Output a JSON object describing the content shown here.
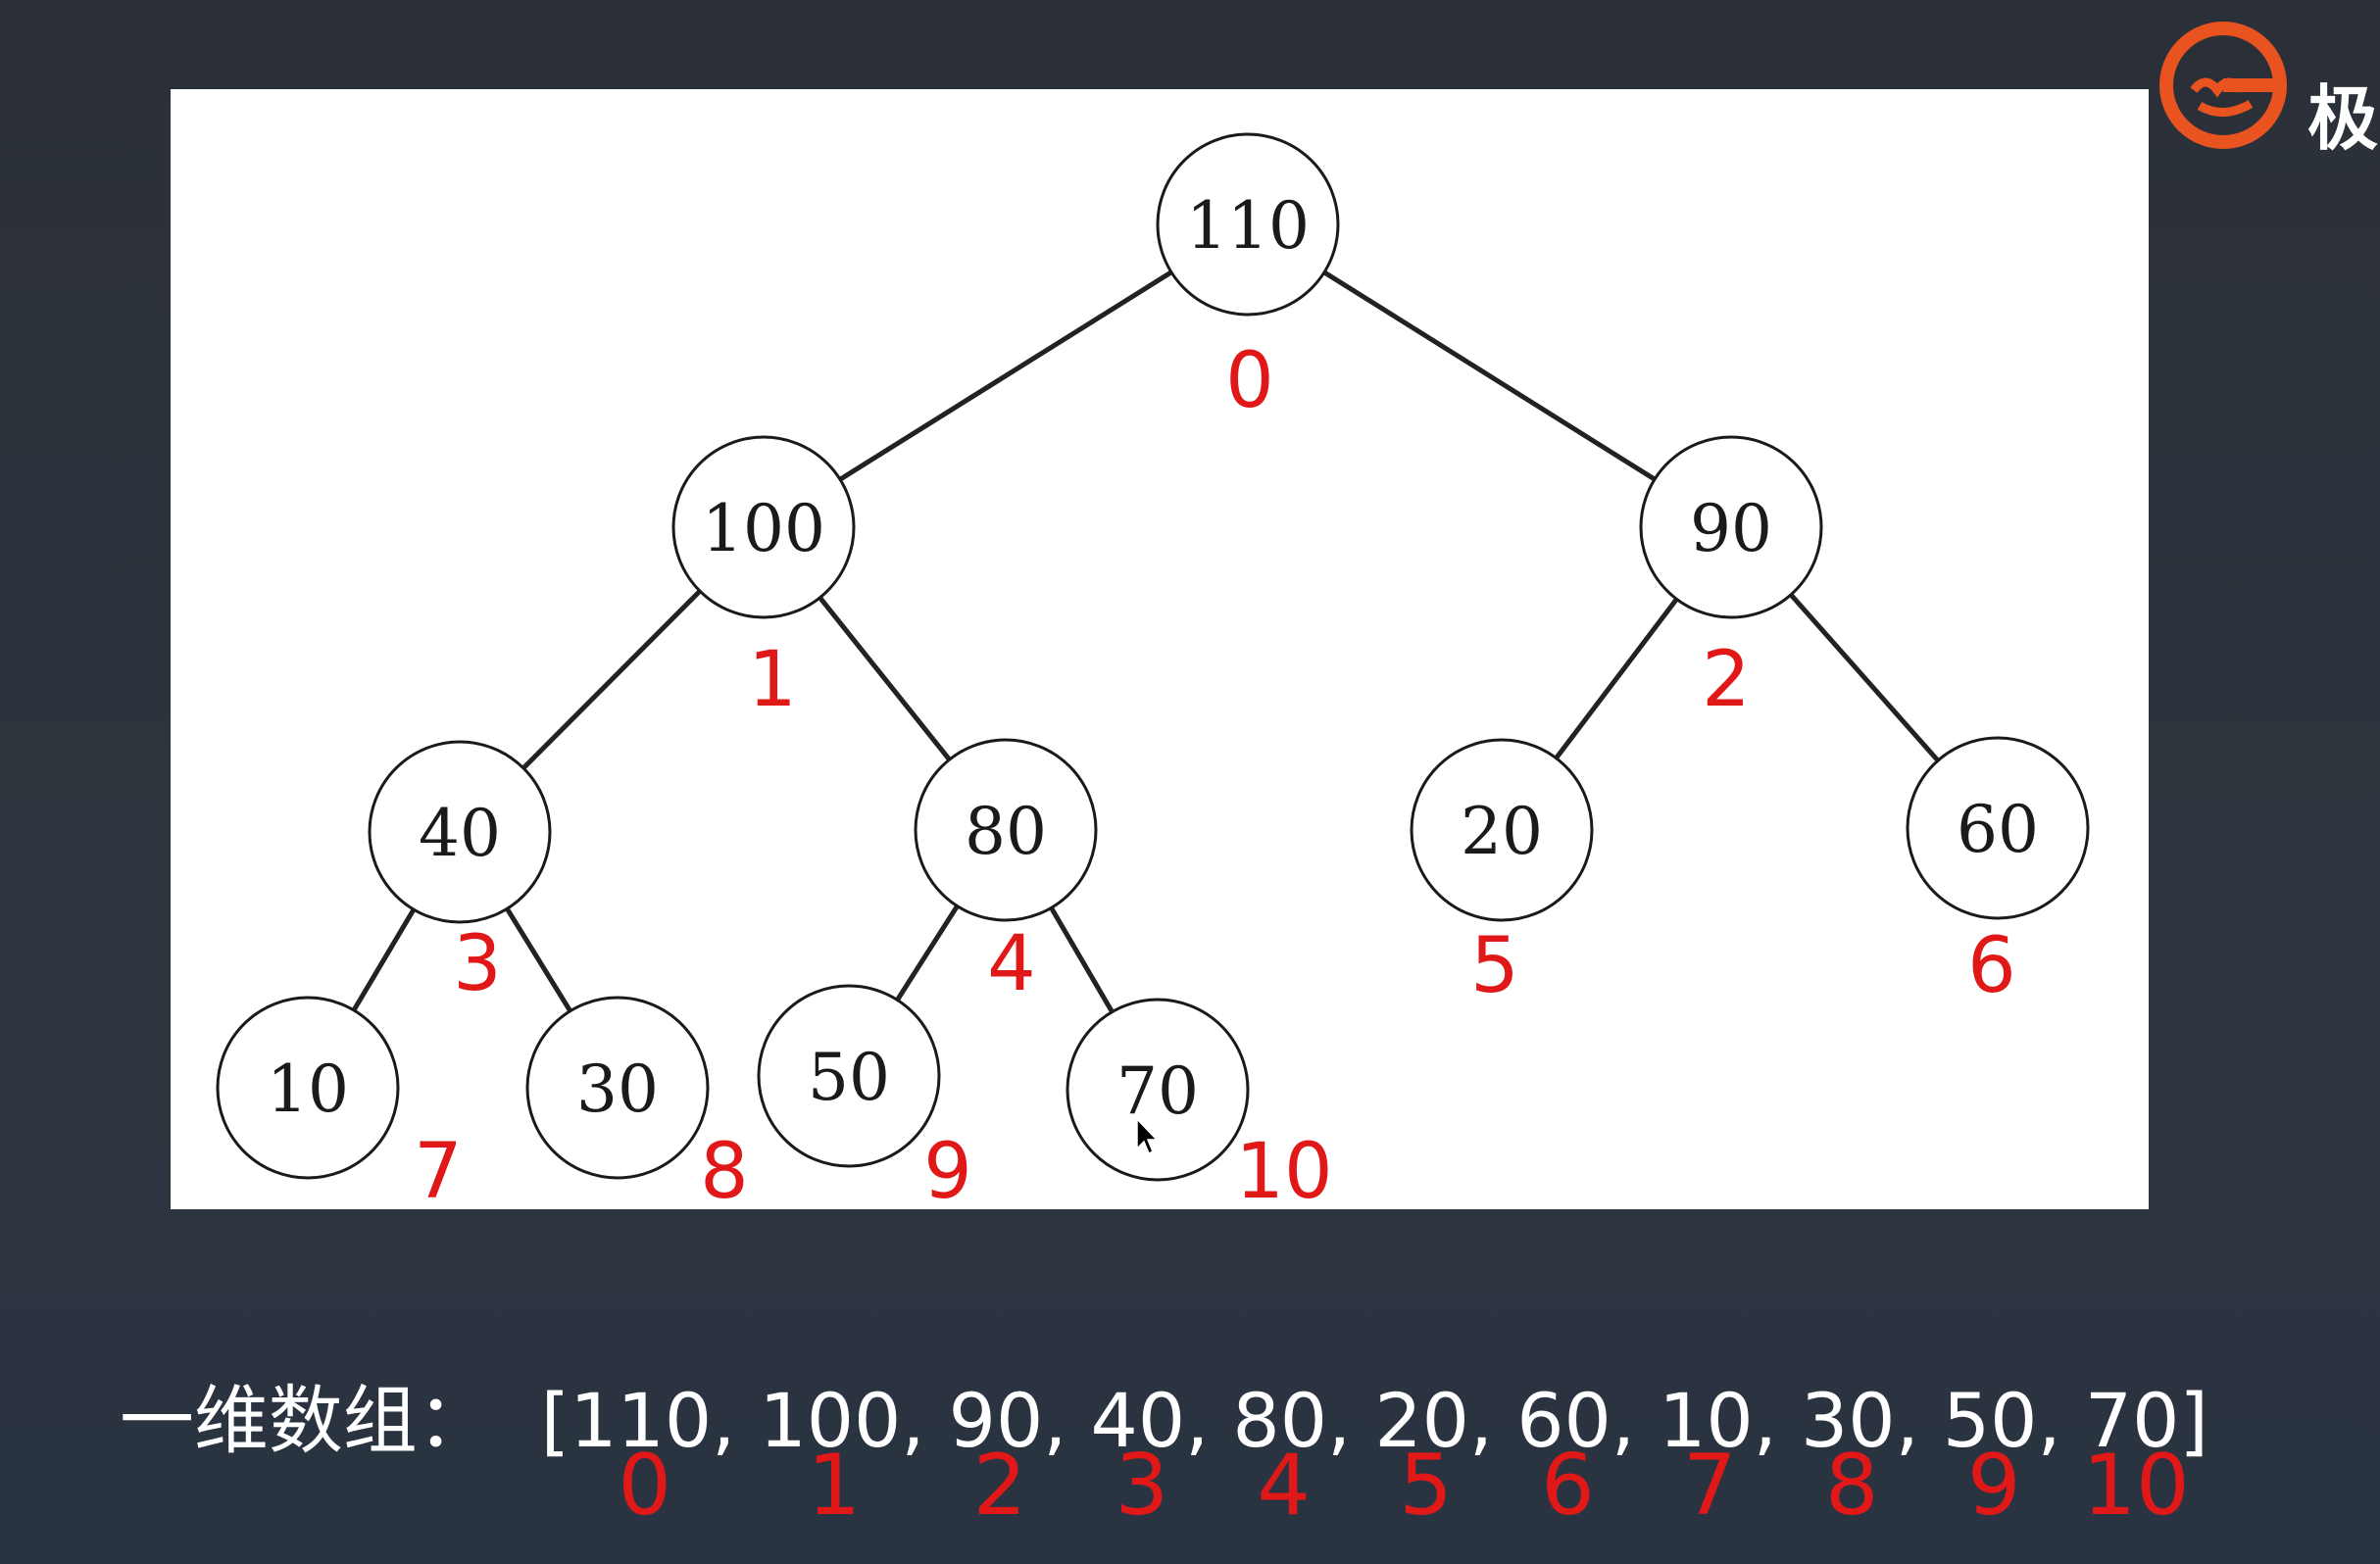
{
  "logo": {
    "icon": "geekbang-logo-icon",
    "char": "极",
    "accent": "#e8531f"
  },
  "colors": {
    "index_red": "#e01818",
    "node_stroke": "#1a1a1a",
    "edge": "#222222"
  },
  "tree": {
    "nodes": [
      {
        "value": "110",
        "index": "0"
      },
      {
        "value": "100",
        "index": "1"
      },
      {
        "value": "90",
        "index": "2"
      },
      {
        "value": "40",
        "index": "3"
      },
      {
        "value": "80",
        "index": "4"
      },
      {
        "value": "20",
        "index": "5"
      },
      {
        "value": "60",
        "index": "6"
      },
      {
        "value": "10",
        "index": "7"
      },
      {
        "value": "30",
        "index": "8"
      },
      {
        "value": "50",
        "index": "9"
      },
      {
        "value": "70",
        "index": "10"
      }
    ],
    "edges": [
      [
        0,
        1
      ],
      [
        0,
        2
      ],
      [
        1,
        3
      ],
      [
        1,
        4
      ],
      [
        2,
        5
      ],
      [
        2,
        6
      ],
      [
        3,
        7
      ],
      [
        3,
        8
      ],
      [
        4,
        9
      ],
      [
        4,
        10
      ]
    ]
  },
  "array": {
    "label": "一维数组：",
    "open": "[",
    "close": "]",
    "separator": ", ",
    "values": [
      "110",
      "100",
      "90",
      "40",
      "80",
      "20",
      "60",
      "10",
      "30",
      "50",
      "70"
    ],
    "indices": [
      "0",
      "1",
      "2",
      "3",
      "4",
      "5",
      "6",
      "7",
      "8",
      "9",
      "10"
    ]
  }
}
